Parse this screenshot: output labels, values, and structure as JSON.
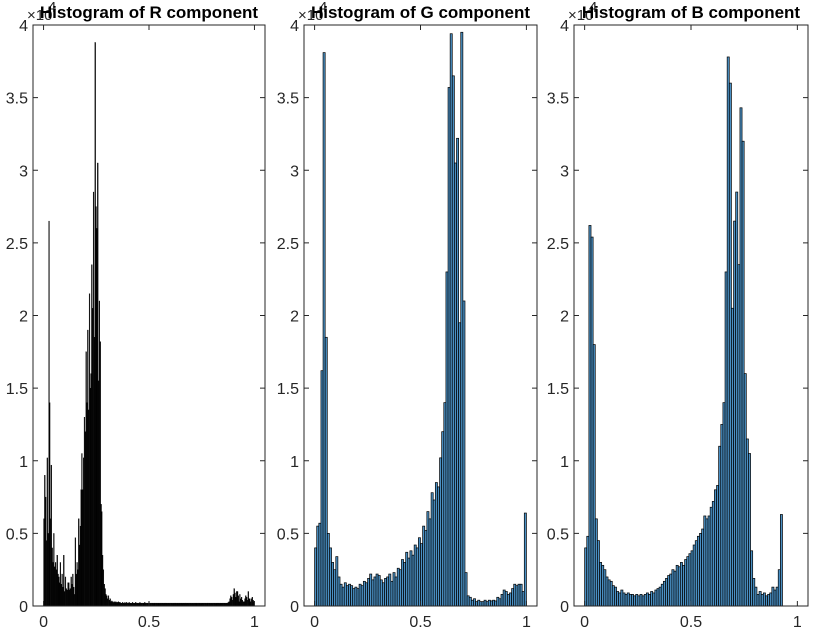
{
  "colors": {
    "background": "#ffffff",
    "axis": "#262626",
    "edge": "#000000",
    "blue_fill": "#4a90c4"
  },
  "chart_data": [
    {
      "type": "bar",
      "title": "Histogram of R component",
      "xlabel": "",
      "ylabel": "",
      "xlim": [
        -0.05,
        1.05
      ],
      "ylim": [
        0,
        40000
      ],
      "y_exponent_label": "×10",
      "y_exponent_power": "4",
      "xticks": [
        "0",
        "0.5",
        "1"
      ],
      "xtick_values": [
        0,
        0.5,
        1
      ],
      "yticks": [
        "0",
        "0.5",
        "1",
        "1.5",
        "2",
        "2.5",
        "3",
        "3.5",
        "4"
      ],
      "ytick_values": [
        0,
        5000,
        10000,
        15000,
        20000,
        25000,
        30000,
        35000,
        40000
      ],
      "grid": false,
      "bar_fill": "#000000",
      "bar_edge": "#000000",
      "bin_width": 0.00392,
      "x": [
        0.002,
        0.006,
        0.01,
        0.014,
        0.018,
        0.022,
        0.026,
        0.029,
        0.033,
        0.037,
        0.041,
        0.045,
        0.049,
        0.053,
        0.057,
        0.061,
        0.065,
        0.069,
        0.073,
        0.076,
        0.08,
        0.084,
        0.088,
        0.092,
        0.096,
        0.1,
        0.104,
        0.108,
        0.112,
        0.116,
        0.12,
        0.124,
        0.127,
        0.131,
        0.135,
        0.139,
        0.143,
        0.147,
        0.151,
        0.155,
        0.159,
        0.163,
        0.167,
        0.171,
        0.175,
        0.178,
        0.182,
        0.186,
        0.19,
        0.194,
        0.198,
        0.202,
        0.206,
        0.21,
        0.214,
        0.218,
        0.222,
        0.225,
        0.229,
        0.233,
        0.237,
        0.241,
        0.245,
        0.249,
        0.253,
        0.257,
        0.261,
        0.265,
        0.269,
        0.273,
        0.276,
        0.28,
        0.284,
        0.288,
        0.292,
        0.296,
        0.3,
        0.304,
        0.308,
        0.312,
        0.316,
        0.32,
        0.324,
        0.327,
        0.331,
        0.335,
        0.339,
        0.343,
        0.347,
        0.351,
        0.355,
        0.359,
        0.363,
        0.367,
        0.371,
        0.375,
        0.378,
        0.382,
        0.386,
        0.39,
        0.394,
        0.398,
        0.402,
        0.406,
        0.41,
        0.414,
        0.418,
        0.422,
        0.425,
        0.429,
        0.433,
        0.437,
        0.441,
        0.445,
        0.449,
        0.453,
        0.457,
        0.461,
        0.465,
        0.469,
        0.473,
        0.476,
        0.48,
        0.484,
        0.488,
        0.492,
        0.496,
        0.5,
        0.504,
        0.508,
        0.512,
        0.516,
        0.52,
        0.524,
        0.527,
        0.531,
        0.535,
        0.539,
        0.543,
        0.547,
        0.551,
        0.555,
        0.559,
        0.563,
        0.567,
        0.571,
        0.575,
        0.578,
        0.582,
        0.586,
        0.59,
        0.594,
        0.598,
        0.602,
        0.606,
        0.61,
        0.614,
        0.618,
        0.622,
        0.625,
        0.629,
        0.633,
        0.637,
        0.641,
        0.645,
        0.649,
        0.653,
        0.657,
        0.661,
        0.665,
        0.669,
        0.673,
        0.676,
        0.68,
        0.684,
        0.688,
        0.692,
        0.696,
        0.7,
        0.704,
        0.708,
        0.712,
        0.716,
        0.72,
        0.724,
        0.727,
        0.731,
        0.735,
        0.739,
        0.743,
        0.747,
        0.751,
        0.755,
        0.759,
        0.763,
        0.767,
        0.771,
        0.775,
        0.778,
        0.782,
        0.786,
        0.79,
        0.794,
        0.798,
        0.802,
        0.806,
        0.81,
        0.814,
        0.818,
        0.822,
        0.825,
        0.829,
        0.833,
        0.837,
        0.841,
        0.845,
        0.849,
        0.853,
        0.857,
        0.861,
        0.865,
        0.869,
        0.873,
        0.876,
        0.88,
        0.884,
        0.888,
        0.892,
        0.896,
        0.9,
        0.904,
        0.908,
        0.912,
        0.916,
        0.92,
        0.924,
        0.927,
        0.931,
        0.935,
        0.939,
        0.943,
        0.947,
        0.951,
        0.955,
        0.959,
        0.963,
        0.967,
        0.971,
        0.975,
        0.978,
        0.982,
        0.986,
        0.99,
        0.994,
        0.998
      ],
      "values": [
        6000,
        9000,
        7500,
        4500,
        10200,
        5000,
        26500,
        14000,
        6000,
        9700,
        4000,
        3000,
        5000,
        2700,
        3000,
        2500,
        3500,
        2200,
        2000,
        1600,
        3000,
        1500,
        2200,
        1300,
        3500,
        1000,
        2000,
        1200,
        1100,
        1600,
        1600,
        1100,
        1200,
        2000,
        1500,
        2200,
        1300,
        800,
        4700,
        2200,
        3000,
        2500,
        6000,
        4200,
        5500,
        8000,
        10500,
        8000,
        10200,
        13000,
        12000,
        17500,
        14000,
        19000,
        13500,
        21500,
        15000,
        16000,
        23500,
        20500,
        28500,
        18500,
        38800,
        27500,
        26000,
        30500,
        15500,
        21000,
        18200,
        7000,
        6500,
        3500,
        2500,
        1500,
        1200,
        800,
        700,
        500,
        700,
        400,
        500,
        300,
        350,
        300,
        250,
        300,
        250,
        300,
        250,
        250,
        300,
        250,
        250,
        200,
        200,
        250,
        200,
        200,
        250,
        200,
        250,
        200,
        200,
        250,
        200,
        200,
        200,
        250,
        200,
        200,
        200,
        250,
        200,
        200,
        200,
        200,
        250,
        200,
        200,
        200,
        200,
        200,
        250,
        200,
        200,
        200,
        200,
        250,
        200,
        200,
        200,
        200,
        200,
        200,
        200,
        200,
        200,
        200,
        200,
        200,
        200,
        200,
        200,
        200,
        200,
        200,
        200,
        200,
        200,
        200,
        200,
        200,
        200,
        200,
        200,
        200,
        200,
        200,
        200,
        200,
        200,
        200,
        200,
        200,
        200,
        200,
        200,
        200,
        200,
        200,
        200,
        200,
        200,
        200,
        200,
        200,
        200,
        200,
        200,
        200,
        200,
        200,
        200,
        200,
        200,
        200,
        200,
        200,
        200,
        200,
        200,
        200,
        200,
        200,
        200,
        200,
        200,
        200,
        200,
        200,
        200,
        200,
        200,
        200,
        200,
        200,
        200,
        200,
        200,
        200,
        200,
        200,
        200,
        200,
        200,
        200,
        200,
        200,
        200,
        200,
        200,
        200,
        200,
        250,
        300,
        500,
        700,
        600,
        400,
        800,
        1200,
        900,
        600,
        1000,
        1000,
        700,
        300,
        800,
        500,
        600,
        400,
        300,
        300,
        500,
        700,
        600,
        400,
        1000,
        500,
        500,
        300,
        500,
        600,
        400,
        300
      ]
    },
    {
      "type": "bar",
      "title": "Histogram of G component",
      "xlabel": "",
      "ylabel": "",
      "xlim": [
        -0.05,
        1.05
      ],
      "ylim": [
        0,
        40000
      ],
      "y_exponent_label": "×10",
      "y_exponent_power": "4",
      "xticks": [
        "0",
        "0.5",
        "1"
      ],
      "xtick_values": [
        0,
        0.5,
        1
      ],
      "yticks": [
        "0",
        "0.5",
        "1",
        "1.5",
        "2",
        "2.5",
        "3",
        "3.5",
        "4"
      ],
      "ytick_values": [
        0,
        5000,
        10000,
        15000,
        20000,
        25000,
        30000,
        35000,
        40000
      ],
      "grid": false,
      "bar_fill": "#4a90c4",
      "bar_edge": "#000000",
      "bin_width": 0.01,
      "x": [
        0.005,
        0.015,
        0.025,
        0.035,
        0.045,
        0.055,
        0.065,
        0.075,
        0.085,
        0.095,
        0.105,
        0.115,
        0.125,
        0.135,
        0.145,
        0.155,
        0.165,
        0.175,
        0.185,
        0.195,
        0.205,
        0.215,
        0.225,
        0.235,
        0.245,
        0.255,
        0.265,
        0.275,
        0.285,
        0.295,
        0.305,
        0.315,
        0.325,
        0.335,
        0.345,
        0.355,
        0.365,
        0.375,
        0.385,
        0.395,
        0.405,
        0.415,
        0.425,
        0.435,
        0.445,
        0.455,
        0.465,
        0.475,
        0.485,
        0.495,
        0.505,
        0.515,
        0.525,
        0.535,
        0.545,
        0.555,
        0.565,
        0.575,
        0.585,
        0.595,
        0.605,
        0.615,
        0.625,
        0.635,
        0.645,
        0.655,
        0.665,
        0.675,
        0.685,
        0.695,
        0.705,
        0.715,
        0.725,
        0.735,
        0.745,
        0.755,
        0.765,
        0.775,
        0.785,
        0.795,
        0.805,
        0.815,
        0.825,
        0.835,
        0.845,
        0.855,
        0.865,
        0.875,
        0.885,
        0.895,
        0.905,
        0.915,
        0.925,
        0.935,
        0.945,
        0.955,
        0.965,
        0.975,
        0.985,
        0.995
      ],
      "values": [
        4000,
        5500,
        5700,
        16200,
        38100,
        18500,
        5000,
        4000,
        3000,
        2500,
        3400,
        2000,
        1500,
        1300,
        1600,
        1400,
        1500,
        1400,
        1200,
        1300,
        1200,
        1500,
        1400,
        1700,
        1600,
        1900,
        2200,
        1800,
        2000,
        2200,
        2100,
        1800,
        1600,
        1900,
        2000,
        2200,
        1700,
        2300,
        2000,
        2600,
        2500,
        3200,
        3000,
        3700,
        3300,
        3800,
        3500,
        4200,
        4000,
        4700,
        4300,
        5500,
        5200,
        6500,
        6000,
        7800,
        7300,
        8500,
        8200,
        10200,
        12000,
        14000,
        23000,
        35700,
        39400,
        36500,
        30500,
        32200,
        19500,
        39500,
        21000,
        2300,
        700,
        600,
        400,
        500,
        300,
        400,
        300,
        300,
        400,
        300,
        400,
        350,
        400,
        350,
        600,
        500,
        800,
        1100,
        1000,
        800,
        900,
        1200,
        1500,
        1400,
        1500,
        1500,
        1000,
        6400
      ]
    },
    {
      "type": "bar",
      "title": "Histogram of B component",
      "xlabel": "",
      "ylabel": "",
      "xlim": [
        -0.05,
        1.05
      ],
      "ylim": [
        0,
        40000
      ],
      "y_exponent_label": "×10",
      "y_exponent_power": "4",
      "xticks": [
        "0",
        "0.5",
        "1"
      ],
      "xtick_values": [
        0,
        0.5,
        1
      ],
      "yticks": [
        "0",
        "0.5",
        "1",
        "1.5",
        "2",
        "2.5",
        "3",
        "3.5",
        "4"
      ],
      "ytick_values": [
        0,
        5000,
        10000,
        15000,
        20000,
        25000,
        30000,
        35000,
        40000
      ],
      "grid": false,
      "bar_fill": "#4a90c4",
      "bar_edge": "#000000",
      "bin_width": 0.01,
      "x": [
        0.005,
        0.015,
        0.025,
        0.035,
        0.045,
        0.055,
        0.065,
        0.075,
        0.085,
        0.095,
        0.105,
        0.115,
        0.125,
        0.135,
        0.145,
        0.155,
        0.165,
        0.175,
        0.185,
        0.195,
        0.205,
        0.215,
        0.225,
        0.235,
        0.245,
        0.255,
        0.265,
        0.275,
        0.285,
        0.295,
        0.305,
        0.315,
        0.325,
        0.335,
        0.345,
        0.355,
        0.365,
        0.375,
        0.385,
        0.395,
        0.405,
        0.415,
        0.425,
        0.435,
        0.445,
        0.455,
        0.465,
        0.475,
        0.485,
        0.495,
        0.505,
        0.515,
        0.525,
        0.535,
        0.545,
        0.555,
        0.565,
        0.575,
        0.585,
        0.595,
        0.605,
        0.615,
        0.625,
        0.635,
        0.645,
        0.655,
        0.665,
        0.675,
        0.685,
        0.695,
        0.705,
        0.715,
        0.725,
        0.735,
        0.745,
        0.755,
        0.765,
        0.775,
        0.785,
        0.795,
        0.805,
        0.815,
        0.825,
        0.835,
        0.845,
        0.855,
        0.865,
        0.875,
        0.885,
        0.895,
        0.905,
        0.915,
        0.925,
        0.935,
        0.945,
        0.955,
        0.965,
        0.975,
        0.985,
        0.995
      ],
      "values": [
        4000,
        4800,
        26200,
        25400,
        18000,
        6000,
        4500,
        3000,
        2800,
        2500,
        2000,
        1800,
        1700,
        1400,
        1300,
        1000,
        900,
        1100,
        900,
        800,
        900,
        800,
        800,
        700,
        800,
        700,
        800,
        700,
        800,
        900,
        800,
        1000,
        900,
        1100,
        1200,
        1300,
        1500,
        1700,
        1900,
        2100,
        2200,
        2500,
        2400,
        2800,
        2700,
        3000,
        2800,
        3200,
        3400,
        3600,
        3800,
        4200,
        4500,
        4800,
        5000,
        5300,
        6200,
        6000,
        6200,
        6800,
        7200,
        8000,
        8300,
        11000,
        12500,
        14000,
        23000,
        37800,
        36000,
        20500,
        26500,
        28500,
        23500,
        34300,
        32000,
        16000,
        11500,
        10500,
        3800,
        1900,
        1300,
        800,
        1000,
        800,
        900,
        700,
        800,
        900,
        1300,
        1100,
        1300,
        2500,
        6300,
        0,
        0,
        0,
        0,
        0,
        0,
        0
      ]
    }
  ]
}
